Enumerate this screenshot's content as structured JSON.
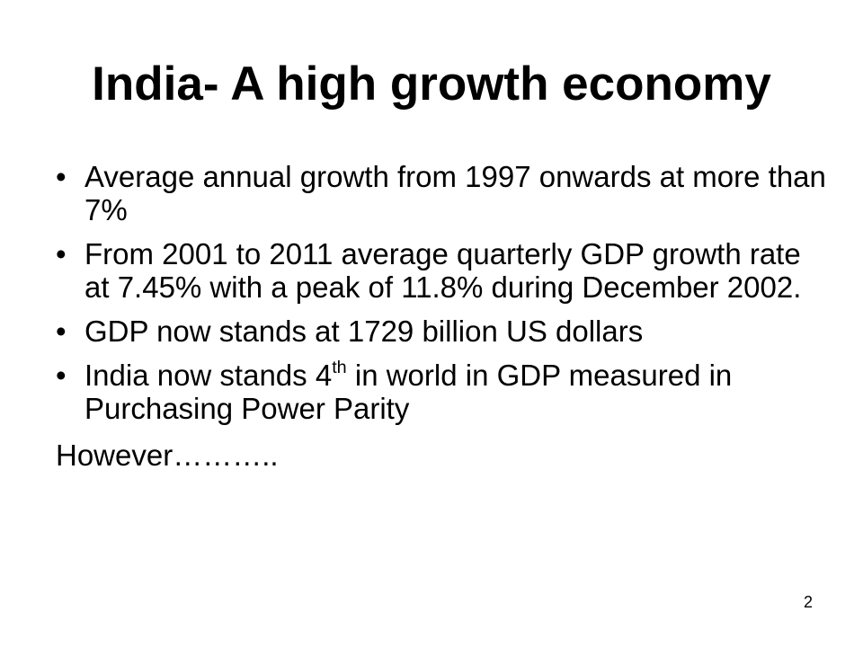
{
  "slide": {
    "title": "India- A high growth economy",
    "bullet_char": "•",
    "bullets": [
      {
        "text": "Average annual growth from 1997 onwards at more than 7%"
      },
      {
        "text": "From 2001 to 2011 average quarterly GDP growth rate at 7.45% with a peak of 11.8% during December 2002."
      },
      {
        "text": "GDP now stands at 1729 billion US dollars"
      },
      {
        "text_before": "India now stands 4",
        "sup": "th",
        "text_after": " in world in GDP measured in Purchasing Power Parity"
      }
    ],
    "closing": "However………..",
    "page_number": "2"
  }
}
